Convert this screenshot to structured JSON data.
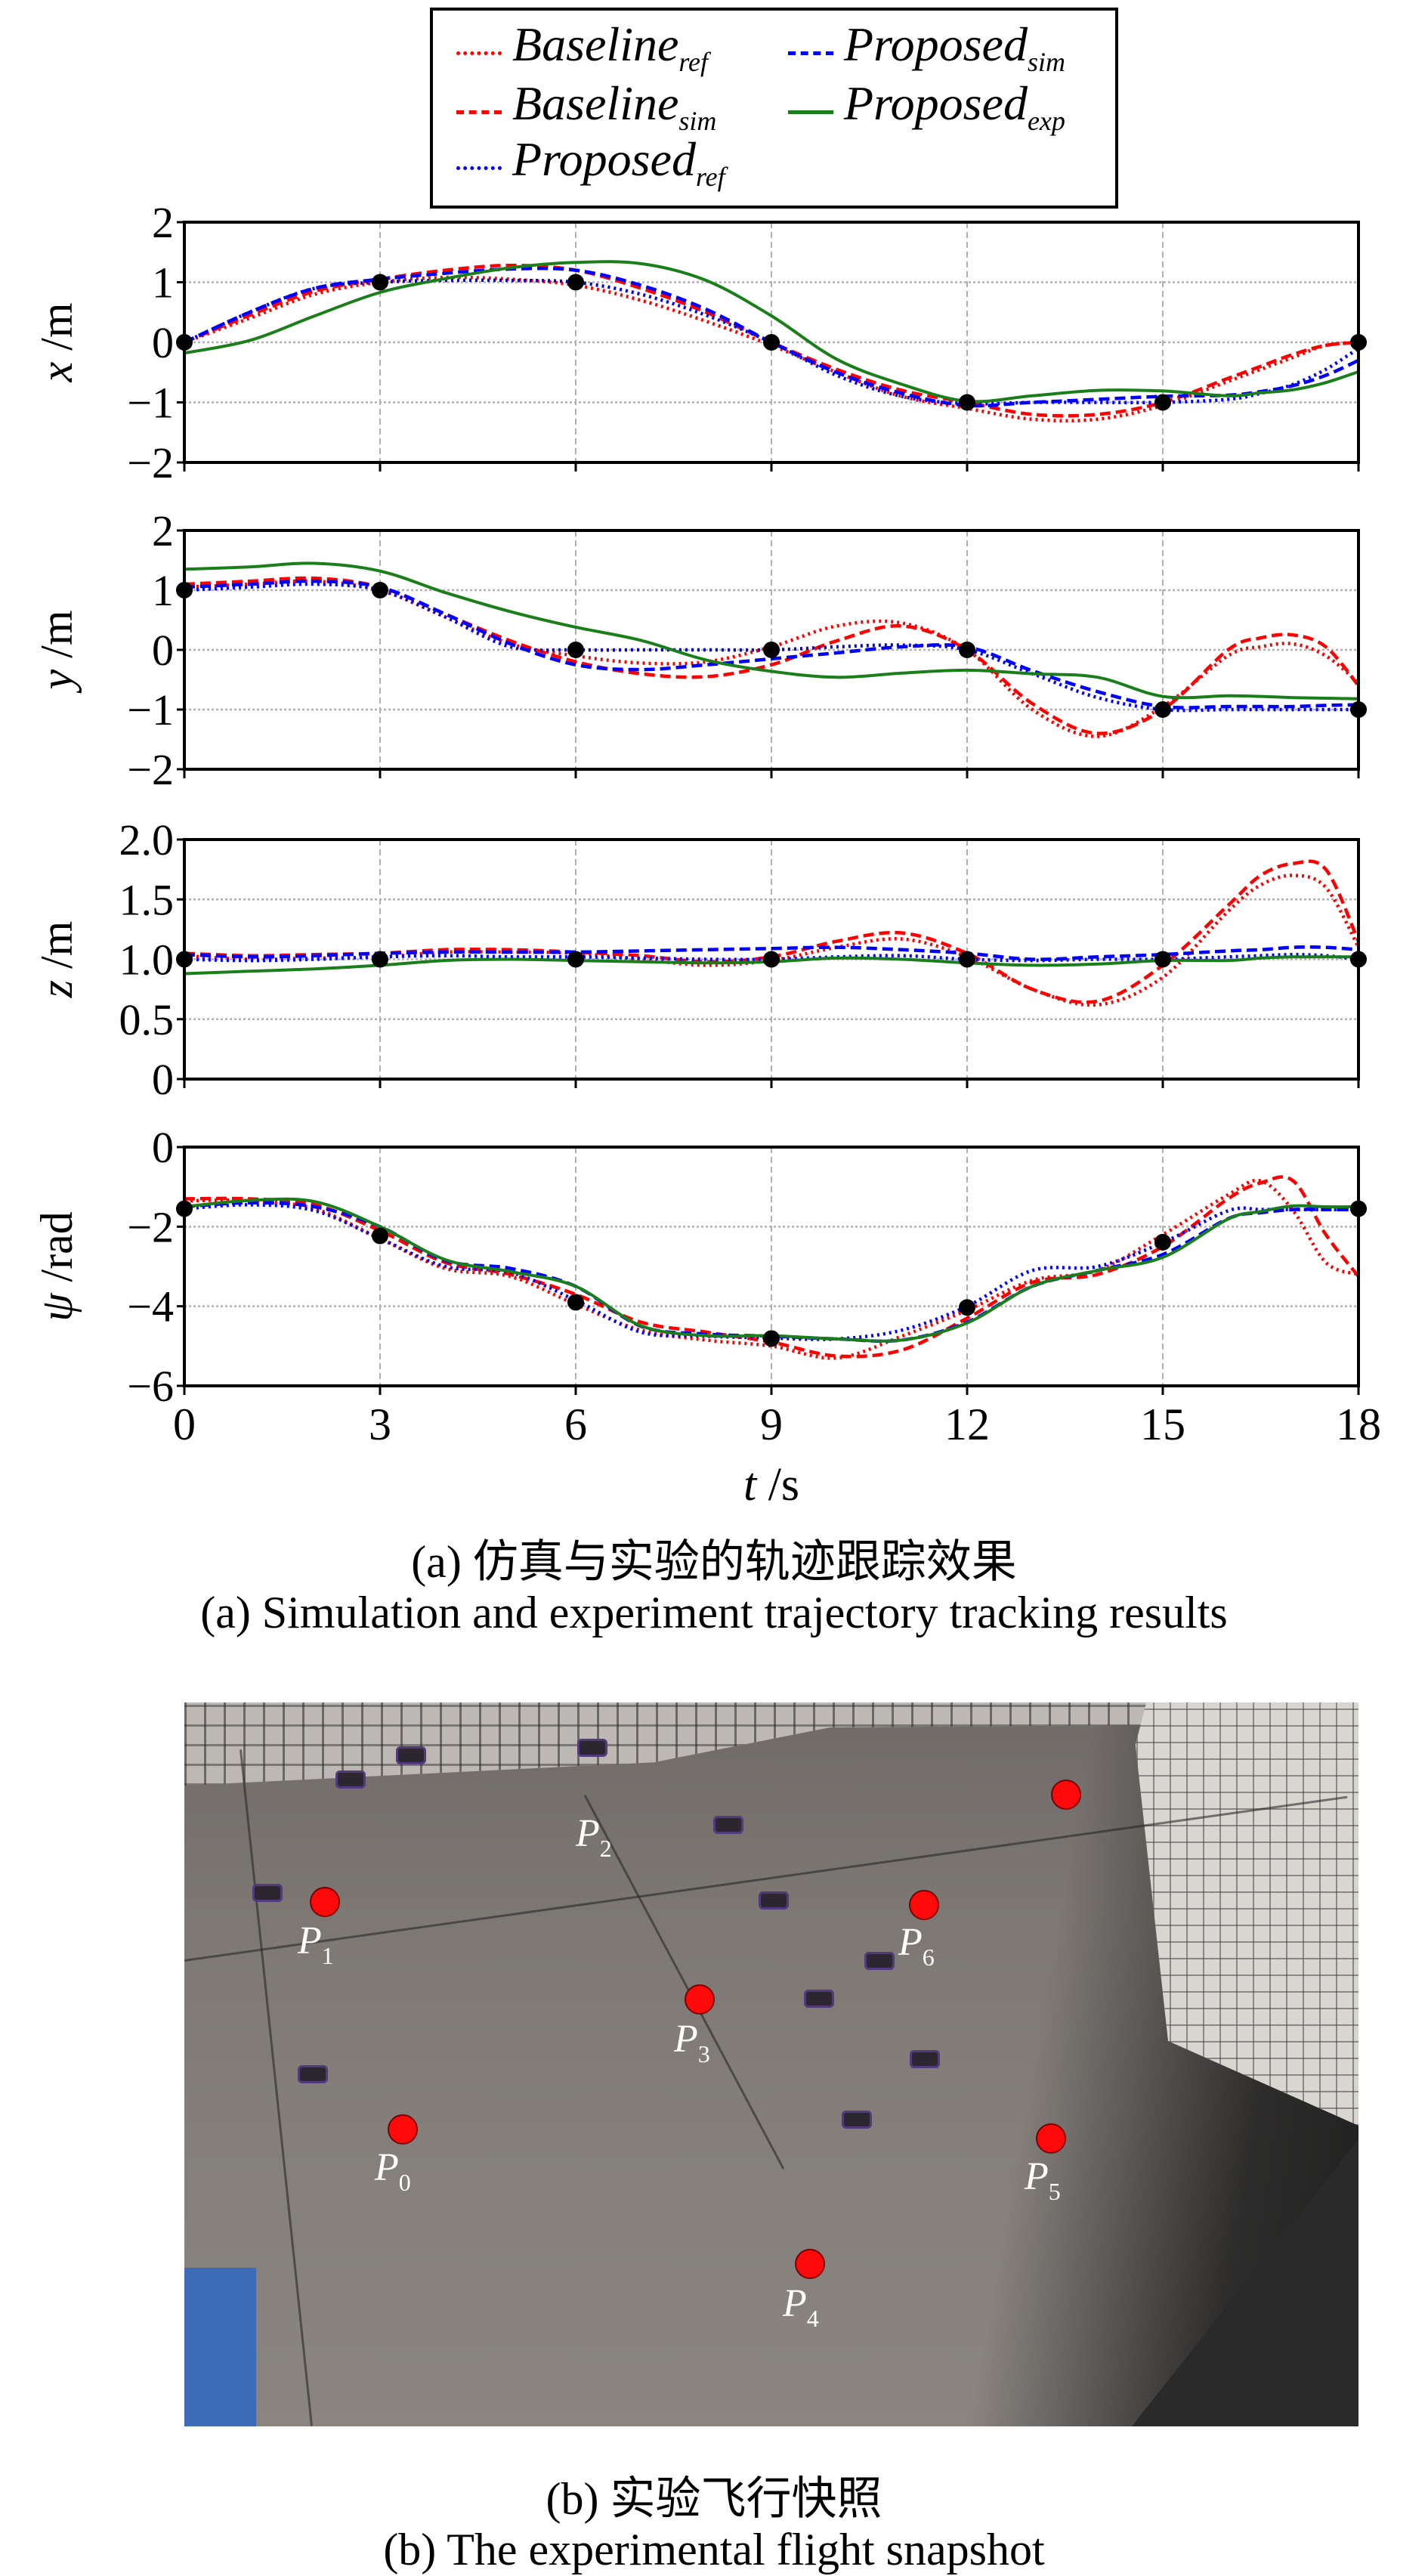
{
  "legend": [
    {
      "main": "Baseline",
      "sub": "ref",
      "color": "#ff0000",
      "style": "dotted"
    },
    {
      "main": "Baseline",
      "sub": "sim",
      "color": "#ff0000",
      "style": "dashed"
    },
    {
      "main": "Proposed",
      "sub": "ref",
      "color": "#0000ff",
      "style": "dotted"
    },
    {
      "main": "Proposed",
      "sub": "sim",
      "color": "#0000ff",
      "style": "dashed"
    },
    {
      "main": "Proposed",
      "sub": "exp",
      "color": "#1a7f1a",
      "style": "solid"
    }
  ],
  "chart_data": {
    "type": "line",
    "xlabel": "t /s",
    "xlim": [
      0,
      18
    ],
    "xticks": [
      "0",
      "3",
      "6",
      "9",
      "12",
      "15",
      "18"
    ],
    "grid": true,
    "legend_position": "top-center",
    "t": [
      0,
      1,
      2,
      3,
      4,
      5,
      6,
      7,
      8,
      9,
      10,
      11,
      12,
      13,
      14,
      15,
      16,
      16.5,
      17,
      17.5,
      18
    ],
    "waypoints_t": [
      0,
      3,
      6,
      9,
      12,
      15,
      18
    ],
    "subplots": [
      {
        "ylabel": "x /m",
        "ylim": [
          -2,
          2
        ],
        "yticks": [
          "2",
          "1",
          "0",
          "−1",
          "−2"
        ],
        "ytick_values": [
          2,
          1,
          0,
          -1,
          -2
        ],
        "waypoints": [
          0,
          1,
          1,
          0,
          -1,
          -1,
          0
        ],
        "series": [
          {
            "name": "Baseline_ref",
            "values": [
              0,
              0.4,
              0.8,
              1.0,
              1.08,
              1.05,
              0.95,
              0.7,
              0.35,
              -0.05,
              -0.5,
              -0.9,
              -1.1,
              -1.28,
              -1.28,
              -1.05,
              -0.65,
              -0.45,
              -0.25,
              -0.05,
              0.0
            ]
          },
          {
            "name": "Baseline_sim",
            "values": [
              0,
              0.45,
              0.85,
              1.05,
              1.2,
              1.28,
              1.2,
              0.9,
              0.5,
              0.0,
              -0.45,
              -0.8,
              -1.0,
              -1.2,
              -1.2,
              -1.0,
              -0.6,
              -0.4,
              -0.2,
              -0.05,
              0.0
            ]
          },
          {
            "name": "Proposed_ref",
            "values": [
              0,
              0.5,
              0.9,
              1.0,
              1.03,
              1.03,
              1.0,
              0.8,
              0.45,
              0,
              -0.55,
              -0.9,
              -1.02,
              -1.0,
              -1.0,
              -1.0,
              -0.95,
              -0.85,
              -0.7,
              -0.45,
              -0.1
            ]
          },
          {
            "name": "Proposed_sim",
            "values": [
              0,
              0.5,
              0.9,
              1.05,
              1.15,
              1.22,
              1.2,
              0.95,
              0.55,
              0.0,
              -0.5,
              -0.85,
              -1.05,
              -1.0,
              -0.95,
              -0.9,
              -0.88,
              -0.82,
              -0.72,
              -0.55,
              -0.3
            ]
          },
          {
            "name": "Proposed_exp",
            "values": [
              -0.18,
              0.03,
              0.44,
              0.83,
              1.06,
              1.24,
              1.33,
              1.31,
              1.03,
              0.44,
              -0.28,
              -0.7,
              -0.98,
              -0.89,
              -0.8,
              -0.81,
              -0.89,
              -0.84,
              -0.79,
              -0.67,
              -0.49
            ]
          }
        ]
      },
      {
        "ylabel": "y /m",
        "ylim": [
          -2,
          2
        ],
        "yticks": [
          "2",
          "1",
          "0",
          "−1",
          "−2"
        ],
        "ytick_values": [
          2,
          1,
          0,
          -1,
          -2
        ],
        "waypoints": [
          1,
          1,
          0,
          0,
          0,
          -1,
          -1
        ],
        "series": [
          {
            "name": "Baseline_ref",
            "values": [
              1.05,
              1.1,
              1.15,
              1.0,
              0.55,
              0.1,
              -0.1,
              -0.22,
              -0.2,
              0.05,
              0.4,
              0.45,
              0.0,
              -1.0,
              -1.45,
              -0.95,
              -0.1,
              0.05,
              0.1,
              -0.1,
              -0.55
            ]
          },
          {
            "name": "Baseline_sim",
            "values": [
              1.1,
              1.15,
              1.2,
              1.05,
              0.6,
              0.15,
              -0.2,
              -0.4,
              -0.45,
              -0.25,
              0.15,
              0.4,
              0.0,
              -0.9,
              -1.4,
              -1.0,
              0.0,
              0.2,
              0.25,
              0.05,
              -0.6
            ]
          },
          {
            "name": "Proposed_ref",
            "values": [
              1.0,
              1.05,
              1.1,
              1.0,
              0.55,
              0.05,
              0.0,
              0.0,
              0.0,
              0.0,
              0.05,
              0.08,
              0.0,
              -0.4,
              -0.8,
              -1.0,
              -1.0,
              -1.0,
              -1.0,
              -1.0,
              -1.0
            ]
          },
          {
            "name": "Proposed_sim",
            "values": [
              1.05,
              1.1,
              1.15,
              1.05,
              0.6,
              0.1,
              -0.25,
              -0.33,
              -0.25,
              -0.15,
              -0.05,
              0.05,
              0.05,
              -0.35,
              -0.7,
              -0.95,
              -0.95,
              -0.95,
              -0.95,
              -0.93,
              -0.92
            ]
          },
          {
            "name": "Proposed_exp",
            "values": [
              1.35,
              1.39,
              1.45,
              1.32,
              0.96,
              0.64,
              0.38,
              0.16,
              -0.17,
              -0.36,
              -0.46,
              -0.39,
              -0.34,
              -0.4,
              -0.46,
              -0.78,
              -0.77,
              -0.78,
              -0.8,
              -0.81,
              -0.82
            ]
          }
        ]
      },
      {
        "ylabel": "z /m",
        "ylim": [
          0,
          2
        ],
        "yticks": [
          "2.0",
          "1.5",
          "1.0",
          "0.5",
          "0"
        ],
        "ytick_values": [
          2,
          1.5,
          1,
          0.5,
          0
        ],
        "waypoints": [
          1,
          1,
          1,
          1,
          1,
          1,
          1
        ],
        "series": [
          {
            "name": "Baseline_ref",
            "values": [
              1.03,
              1.0,
              1.01,
              1.02,
              1.06,
              1.06,
              1.05,
              1.0,
              0.95,
              0.99,
              1.1,
              1.17,
              1.02,
              0.75,
              0.62,
              0.85,
              1.4,
              1.62,
              1.7,
              1.6,
              1.1
            ]
          },
          {
            "name": "Baseline_sim",
            "values": [
              1.05,
              1.03,
              1.04,
              1.05,
              1.08,
              1.08,
              1.06,
              1.03,
              0.98,
              1.02,
              1.15,
              1.22,
              1.05,
              0.75,
              0.65,
              0.95,
              1.45,
              1.7,
              1.8,
              1.75,
              1.15
            ]
          },
          {
            "name": "Proposed_ref",
            "values": [
              1.0,
              0.99,
              1.0,
              1.02,
              1.03,
              1.02,
              1.02,
              1.01,
              1.0,
              1.0,
              1.02,
              1.03,
              1.0,
              0.99,
              1.0,
              1.0,
              1.02,
              1.03,
              1.04,
              1.03,
              1.0
            ]
          },
          {
            "name": "Proposed_sim",
            "values": [
              1.04,
              1.02,
              1.03,
              1.05,
              1.06,
              1.06,
              1.06,
              1.07,
              1.08,
              1.09,
              1.1,
              1.08,
              1.05,
              1.0,
              1.02,
              1.04,
              1.07,
              1.08,
              1.1,
              1.1,
              1.08
            ]
          },
          {
            "name": "Proposed_exp",
            "values": [
              0.88,
              0.9,
              0.92,
              0.95,
              0.99,
              1.0,
              0.99,
              0.98,
              0.97,
              0.98,
              1.01,
              1.0,
              0.97,
              0.95,
              0.96,
              0.99,
              0.99,
              1.01,
              1.02,
              1.02,
              1.02
            ]
          }
        ]
      },
      {
        "ylabel": "ψ /rad",
        "ylim": [
          -6,
          0
        ],
        "yticks": [
          "0",
          "−2",
          "−4",
          "−6"
        ],
        "ytick_values": [
          0,
          -2,
          -4,
          -6
        ],
        "waypoints": [
          -1.55,
          -2.23,
          -3.9,
          -4.81,
          -4.03,
          -2.39,
          -1.55
        ],
        "series": [
          {
            "name": "Baseline_ref",
            "values": [
              -1.35,
              -1.35,
              -1.55,
              -2.3,
              -3.05,
              -3.25,
              -3.95,
              -4.6,
              -4.85,
              -5.0,
              -5.3,
              -4.75,
              -4.1,
              -3.35,
              -3.1,
              -2.2,
              -1.2,
              -0.85,
              -1.6,
              -2.9,
              -3.2
            ]
          },
          {
            "name": "Baseline_sim",
            "values": [
              -1.3,
              -1.3,
              -1.45,
              -2.1,
              -2.9,
              -3.2,
              -3.7,
              -4.4,
              -4.65,
              -4.9,
              -5.25,
              -5.1,
              -4.3,
              -3.4,
              -3.2,
              -2.5,
              -1.3,
              -0.9,
              -0.85,
              -2.2,
              -3.25
            ]
          },
          {
            "name": "Proposed_ref",
            "values": [
              -1.55,
              -1.45,
              -1.6,
              -2.3,
              -3.0,
              -3.15,
              -3.85,
              -4.65,
              -4.75,
              -4.8,
              -4.82,
              -4.6,
              -4.0,
              -3.1,
              -3.0,
              -2.4,
              -1.6,
              -1.57,
              -1.57,
              -1.57,
              -1.57
            ]
          },
          {
            "name": "Proposed_sim",
            "values": [
              -1.5,
              -1.4,
              -1.5,
              -2.0,
              -2.85,
              -3.05,
              -3.5,
              -4.5,
              -4.7,
              -4.75,
              -4.82,
              -4.85,
              -4.4,
              -3.5,
              -3.1,
              -2.7,
              -1.8,
              -1.65,
              -1.57,
              -1.57,
              -1.57
            ]
          },
          {
            "name": "Proposed_exp",
            "values": [
              -1.5,
              -1.34,
              -1.37,
              -2.0,
              -2.83,
              -3.13,
              -3.5,
              -4.49,
              -4.74,
              -4.74,
              -4.82,
              -4.85,
              -4.42,
              -3.5,
              -3.1,
              -2.77,
              -1.81,
              -1.62,
              -1.48,
              -1.5,
              -1.5
            ]
          }
        ]
      }
    ]
  },
  "captions": {
    "a_cn": "(a) 仿真与实验的轨迹跟踪效果",
    "a_en": "(a) Simulation and experiment trajectory tracking results",
    "b_cn": "(b) 实验飞行快照",
    "b_en": "(b) The experimental flight snapshot"
  },
  "photo_points": [
    {
      "p": "P",
      "sub": "0"
    },
    {
      "p": "P",
      "sub": "1"
    },
    {
      "p": "P",
      "sub": "2"
    },
    {
      "p": "P",
      "sub": "3"
    },
    {
      "p": "P",
      "sub": "4"
    },
    {
      "p": "P",
      "sub": "5"
    },
    {
      "p": "P",
      "sub": "6"
    }
  ]
}
